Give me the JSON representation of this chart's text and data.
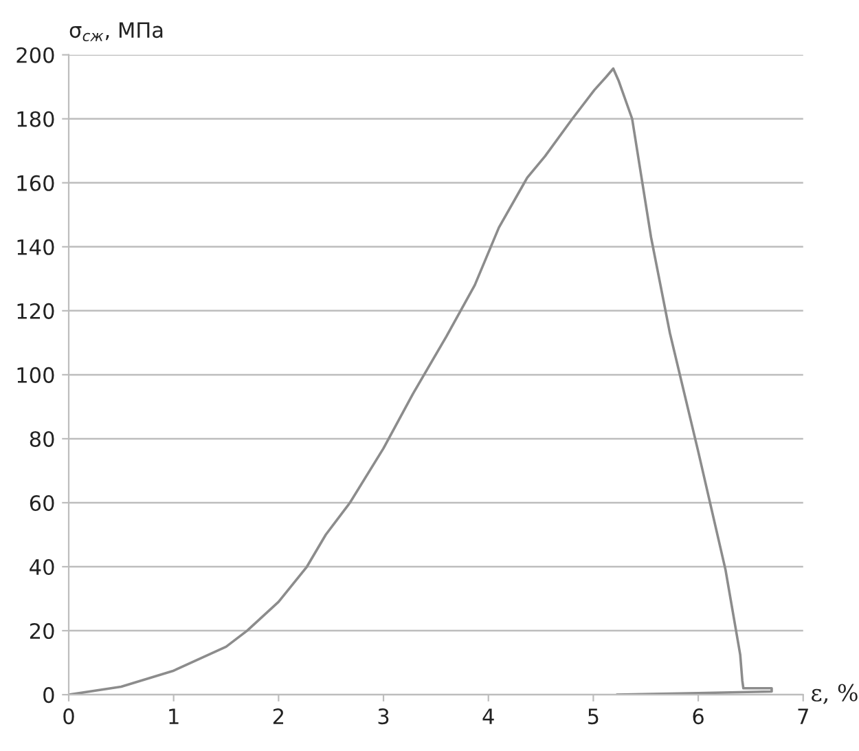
{
  "chart_data": {
    "type": "line",
    "xlabel": "ε, %",
    "ylabel": "σ$_{сж}$, МПа",
    "xlim": [
      0,
      7
    ],
    "ylim": [
      0,
      200
    ],
    "xticks": [
      0,
      1,
      2,
      3,
      4,
      5,
      6,
      7
    ],
    "yticks": [
      0,
      20,
      40,
      60,
      80,
      100,
      120,
      140,
      160,
      180,
      200
    ],
    "grid": "y",
    "marker": "none",
    "line_style": "solid",
    "series": [
      {
        "color": "#8c8c8c",
        "x": [
          0,
          0.5,
          1,
          1.5,
          1.7,
          2,
          2.27,
          2.45,
          2.68,
          3,
          3.28,
          3.6,
          3.87,
          4.1,
          4.37,
          4.54,
          4.8,
          5.01,
          5.12,
          5.19,
          5.24,
          5.37,
          5.55,
          5.73,
          6.0,
          6.26,
          6.4,
          6.42,
          6.43,
          6.7,
          6.7,
          6.0,
          5.23
        ],
        "values": [
          0,
          2.5,
          7.5,
          15,
          20,
          29,
          40,
          50,
          60,
          77,
          94,
          112,
          128,
          146,
          161.6,
          168.3,
          180,
          189,
          193,
          195.7,
          192,
          180,
          143,
          113,
          76,
          39,
          12.5,
          4.4,
          2,
          2,
          1,
          0.5,
          0
        ]
      }
    ]
  }
}
